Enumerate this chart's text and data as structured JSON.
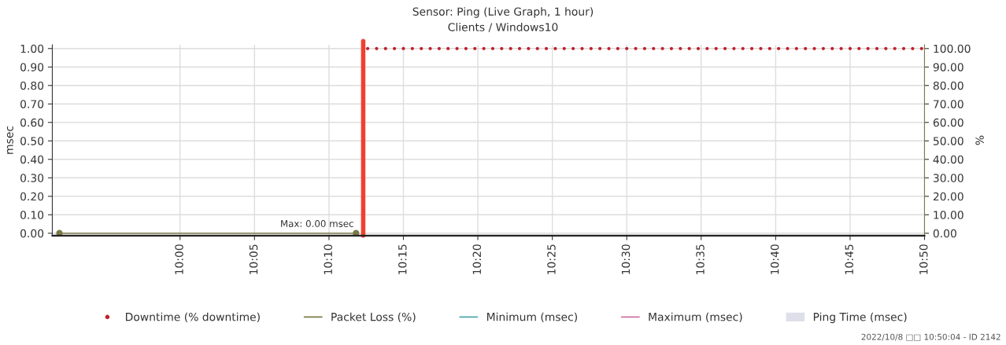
{
  "chart_data": {
    "type": "scatter",
    "title": "Sensor: Ping (Live Graph, 1 hour)",
    "subtitle": "Clients / Windows10",
    "ylabel": "msec",
    "y2label": "%",
    "xlim": [
      9.857,
      10.8333
    ],
    "ylim": [
      -0.013,
      1.02
    ],
    "y2lim": [
      -1.3,
      102
    ],
    "xticks": [
      {
        "value": 10.0,
        "label": "10:00"
      },
      {
        "value": 10.0833,
        "label": "10:05"
      },
      {
        "value": 10.1667,
        "label": "10:10"
      },
      {
        "value": 10.25,
        "label": "10:15"
      },
      {
        "value": 10.3333,
        "label": "10:20"
      },
      {
        "value": 10.4167,
        "label": "10:25"
      },
      {
        "value": 10.5,
        "label": "10:30"
      },
      {
        "value": 10.5833,
        "label": "10:35"
      },
      {
        "value": 10.6667,
        "label": "10:40"
      },
      {
        "value": 10.75,
        "label": "10:45"
      },
      {
        "value": 10.8333,
        "label": "10:50"
      }
    ],
    "yticks": [
      {
        "value": 0,
        "label": "0.00"
      },
      {
        "value": 0.1,
        "label": "0.10"
      },
      {
        "value": 0.2,
        "label": "0.20"
      },
      {
        "value": 0.3,
        "label": "0.30"
      },
      {
        "value": 0.4,
        "label": "0.40"
      },
      {
        "value": 0.5,
        "label": "0.50"
      },
      {
        "value": 0.6,
        "label": "0.60"
      },
      {
        "value": 0.7,
        "label": "0.70"
      },
      {
        "value": 0.8,
        "label": "0.80"
      },
      {
        "value": 0.9,
        "label": "0.90"
      },
      {
        "value": 1,
        "label": "1.00"
      }
    ],
    "y2ticks": [
      {
        "value": 0,
        "label": "0.00"
      },
      {
        "value": 10,
        "label": "10.00"
      },
      {
        "value": 20,
        "label": "20.00"
      },
      {
        "value": 30,
        "label": "30.00"
      },
      {
        "value": 40,
        "label": "40.00"
      },
      {
        "value": 50,
        "label": "50.00"
      },
      {
        "value": 60,
        "label": "60.00"
      },
      {
        "value": 70,
        "label": "70.00"
      },
      {
        "value": 80,
        "label": "80.00"
      },
      {
        "value": 90,
        "label": "90.00"
      },
      {
        "value": 100,
        "label": "100.00"
      }
    ],
    "grid": true,
    "legend": "bottom",
    "series": [
      {
        "name": "Downtime (% downtime)",
        "color": "#c0202a",
        "axis": "y2",
        "marker": "circle",
        "x": [
          10.21,
          10.22,
          10.23,
          10.24,
          10.25,
          10.26,
          10.27,
          10.28,
          10.29,
          10.3,
          10.31,
          10.32,
          10.33,
          10.34,
          10.35,
          10.36,
          10.37,
          10.38,
          10.39,
          10.4,
          10.41,
          10.42,
          10.43,
          10.44,
          10.45,
          10.46,
          10.47,
          10.48,
          10.49,
          10.5,
          10.51,
          10.52,
          10.53,
          10.54,
          10.55,
          10.56,
          10.57,
          10.58,
          10.59,
          10.6,
          10.61,
          10.62,
          10.63,
          10.64,
          10.65,
          10.66,
          10.67,
          10.68,
          10.69,
          10.7,
          10.71,
          10.72,
          10.73,
          10.74,
          10.75,
          10.76,
          10.77,
          10.78,
          10.79,
          10.8,
          10.81,
          10.82,
          10.83
        ],
        "values": [
          100,
          100,
          100,
          100,
          100,
          100,
          100,
          100,
          100,
          100,
          100,
          100,
          100,
          100,
          100,
          100,
          100,
          100,
          100,
          100,
          100,
          100,
          100,
          100,
          100,
          100,
          100,
          100,
          100,
          100,
          100,
          100,
          100,
          100,
          100,
          100,
          100,
          100,
          100,
          100,
          100,
          100,
          100,
          100,
          100,
          100,
          100,
          100,
          100,
          100,
          100,
          100,
          100,
          100,
          100,
          100,
          100,
          100,
          100,
          100,
          100,
          100,
          100
        ]
      },
      {
        "name": "Packet Loss (%)",
        "type": "line",
        "color": "#7a7a4a",
        "axis": "y2",
        "marker": "circle",
        "x": [
          9.865,
          10.197
        ],
        "values": [
          0,
          0
        ]
      },
      {
        "name": "Minimum (msec)",
        "type": "line",
        "color": "#4aa8b0"
      },
      {
        "name": "Maximum (msec)",
        "type": "line",
        "color": "#d070a0"
      },
      {
        "name": "Ping Time (msec)",
        "type": "area",
        "color": "#dde0ea"
      }
    ],
    "ref_lines": [
      {
        "axis": "x",
        "value": 10.205,
        "color": "#f04030",
        "line_style": "solid"
      }
    ],
    "annotations": [
      {
        "text": "Max: 0.00 msec",
        "x": 10.197,
        "y": 0
      },
      "2022/10/8 □□ 10:50:04 - ID 2142"
    ]
  }
}
